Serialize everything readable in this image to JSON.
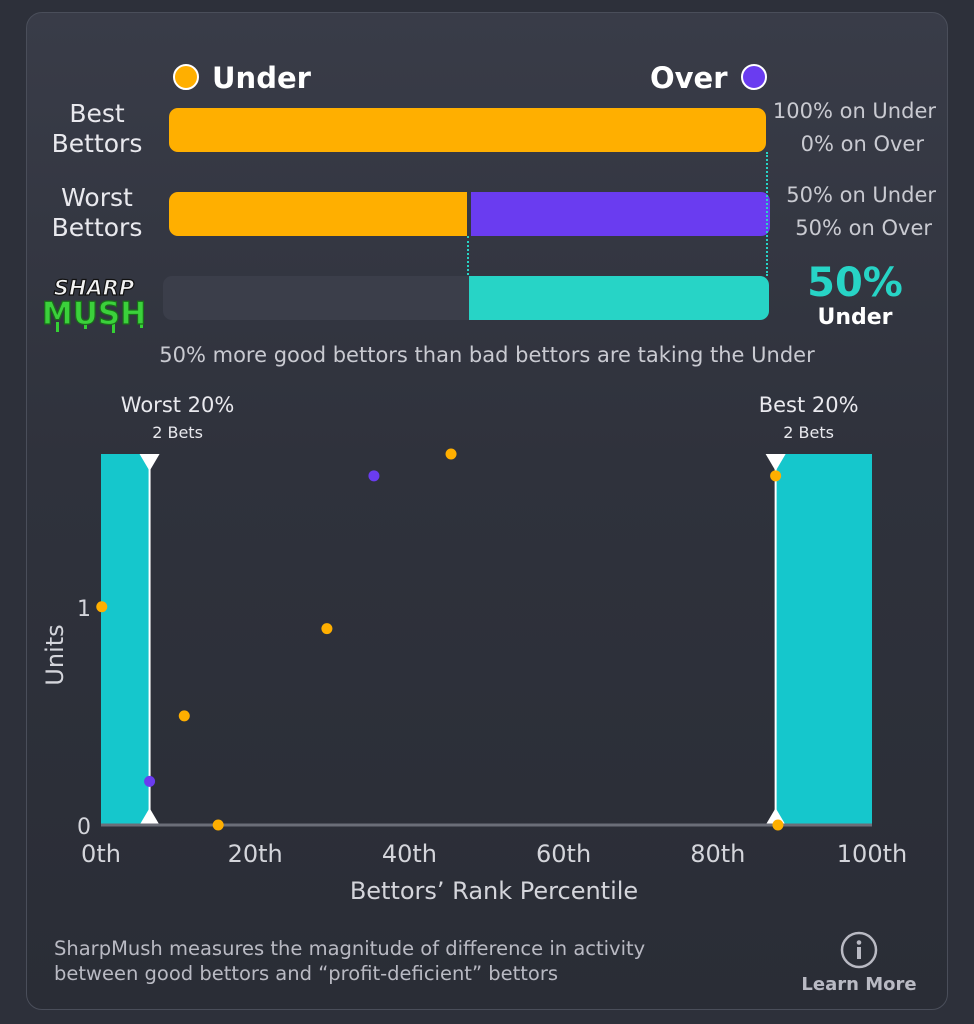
{
  "legend": {
    "under_label": "Under",
    "over_label": "Over",
    "under_color": "#ffaf00",
    "over_color": "#6a3cf0"
  },
  "rows": [
    {
      "label_line1": "Best",
      "label_line2": "Bettors",
      "under_pct": 1.0,
      "over_pct": 0.0,
      "text_under": "100% on Under",
      "text_over": "0% on Over"
    },
    {
      "label_line1": "Worst",
      "label_line2": "Bettors",
      "under_pct": 0.5,
      "over_pct": 0.5,
      "text_under": "50% on Under",
      "text_over": "50% on Over"
    }
  ],
  "sharpmush": {
    "logo_line1": "SHARP",
    "logo_line2": "MUSH",
    "value": "50%",
    "direction": "Under",
    "fill_fraction": 0.5,
    "accent_color": "#27d4c6",
    "headline": "50% more good bettors than bad bettors are taking the Under"
  },
  "chart_data": {
    "type": "scatter",
    "xlabel": "Bettors’ Rank Percentile",
    "ylabel": "Units",
    "xlim": [
      0,
      100
    ],
    "ylim": [
      0,
      1.7
    ],
    "xticks": [
      0,
      20,
      40,
      60,
      80,
      100
    ],
    "xtick_labels": [
      "0th",
      "20th",
      "40th",
      "60th",
      "80th",
      "100th"
    ],
    "yticks": [
      0,
      1
    ],
    "ytick_labels": [
      "0",
      "1"
    ],
    "grid": false,
    "regions": [
      {
        "name": "Worst 20%",
        "sublabel": "2 Bets",
        "x_start": 0,
        "x_end": 6.3
      },
      {
        "name": "Best 20%",
        "sublabel": "2 Bets",
        "x_start": 87.5,
        "x_end": 100
      }
    ],
    "series": [
      {
        "name": "Under",
        "color": "#ffaf00",
        "points": [
          {
            "x": 0.1,
            "y": 1.0
          },
          {
            "x": 10.8,
            "y": 0.5
          },
          {
            "x": 15.2,
            "y": 0.0
          },
          {
            "x": 29.3,
            "y": 0.9
          },
          {
            "x": 45.4,
            "y": 1.7
          },
          {
            "x": 87.5,
            "y": 1.6
          },
          {
            "x": 87.8,
            "y": 0.0
          }
        ]
      },
      {
        "name": "Over",
        "color": "#6a3cf0",
        "points": [
          {
            "x": 6.3,
            "y": 0.2
          },
          {
            "x": 35.4,
            "y": 1.6
          }
        ]
      }
    ]
  },
  "footer": {
    "line1": "SharpMush measures the magnitude of difference in activity",
    "line2": "between good bettors and “profit-deficient” bettors",
    "info_icon": "info-icon",
    "learn_more": "Learn More"
  }
}
